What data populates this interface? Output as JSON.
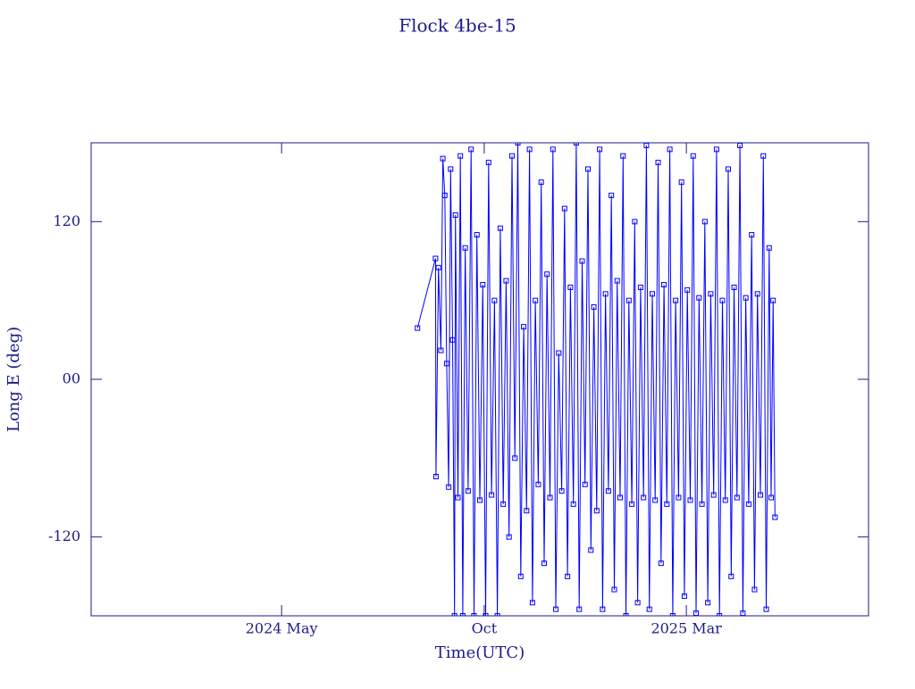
{
  "chart_data": {
    "type": "line",
    "title": "Flock 4be-15",
    "xlabel": "Time(UTC)",
    "ylabel": "Long E (deg)",
    "color": "#0000ff",
    "xlim": [
      2023.942,
      2025.538
    ],
    "xticks": [
      {
        "value": 2024.333,
        "label": "2024 May"
      },
      {
        "value": 2024.749,
        "label": "Oct"
      },
      {
        "value": 2025.164,
        "label": "2025 Mar"
      }
    ],
    "ylim": [
      -180,
      180
    ],
    "yticks": [
      -120,
      {
        "value": 0,
        "label": "00"
      },
      120
    ],
    "x": [
      2024.612,
      2024.649,
      2024.65,
      2024.655,
      2024.66,
      2024.664,
      2024.668,
      2024.672,
      2024.676,
      2024.68,
      2024.684,
      2024.688,
      2024.69,
      2024.695,
      2024.7,
      2024.705,
      2024.71,
      2024.716,
      2024.722,
      2024.728,
      2024.734,
      2024.74,
      2024.746,
      2024.752,
      2024.758,
      2024.764,
      2024.77,
      2024.776,
      2024.782,
      2024.788,
      2024.794,
      2024.8,
      2024.806,
      2024.812,
      2024.818,
      2024.824,
      2024.83,
      2024.836,
      2024.842,
      2024.848,
      2024.854,
      2024.86,
      2024.866,
      2024.872,
      2024.878,
      2024.884,
      2024.89,
      2024.896,
      2024.902,
      2024.908,
      2024.914,
      2024.92,
      2024.926,
      2024.932,
      2024.938,
      2024.944,
      2024.95,
      2024.956,
      2024.962,
      2024.968,
      2024.974,
      2024.98,
      2024.986,
      2024.992,
      2024.998,
      2025.004,
      2025.01,
      2025.016,
      2025.022,
      2025.028,
      2025.034,
      2025.04,
      2025.046,
      2025.052,
      2025.058,
      2025.064,
      2025.07,
      2025.076,
      2025.082,
      2025.088,
      2025.094,
      2025.1,
      2025.106,
      2025.112,
      2025.118,
      2025.124,
      2025.13,
      2025.136,
      2025.142,
      2025.148,
      2025.154,
      2025.16,
      2025.166,
      2025.172,
      2025.178,
      2025.184,
      2025.19,
      2025.196,
      2025.202,
      2025.208,
      2025.214,
      2025.22,
      2025.226,
      2025.232,
      2025.238,
      2025.244,
      2025.25,
      2025.256,
      2025.262,
      2025.268,
      2025.274,
      2025.28,
      2025.286,
      2025.292,
      2025.298,
      2025.304,
      2025.31,
      2025.316,
      2025.322,
      2025.328,
      2025.334,
      2025.338,
      2025.342,
      2025.346
    ],
    "values": [
      39,
      92,
      -74,
      85,
      22,
      168,
      140,
      12,
      -82,
      160,
      30,
      -180,
      125,
      -90,
      170,
      -180,
      100,
      -85,
      175,
      -180,
      110,
      -92,
      72,
      -180,
      165,
      -88,
      60,
      -180,
      115,
      -95,
      75,
      -120,
      170,
      -60,
      180,
      -150,
      40,
      -100,
      175,
      -170,
      60,
      -80,
      150,
      -140,
      80,
      -90,
      175,
      -175,
      20,
      -85,
      130,
      -150,
      70,
      -95,
      180,
      -175,
      90,
      -80,
      160,
      -130,
      55,
      -100,
      175,
      -175,
      65,
      -85,
      140,
      -160,
      75,
      -90,
      170,
      -180,
      60,
      -95,
      120,
      -170,
      70,
      -90,
      178,
      -175,
      65,
      -92,
      165,
      -140,
      72,
      -95,
      175,
      -180,
      60,
      -90,
      150,
      -165,
      68,
      -92,
      170,
      -178,
      62,
      -95,
      120,
      -170,
      65,
      -88,
      175,
      -180,
      60,
      -92,
      160,
      -150,
      70,
      -90,
      178,
      -178,
      62,
      -95,
      110,
      -160,
      65,
      -88,
      170,
      -175,
      100,
      -90,
      60,
      -105
    ]
  }
}
